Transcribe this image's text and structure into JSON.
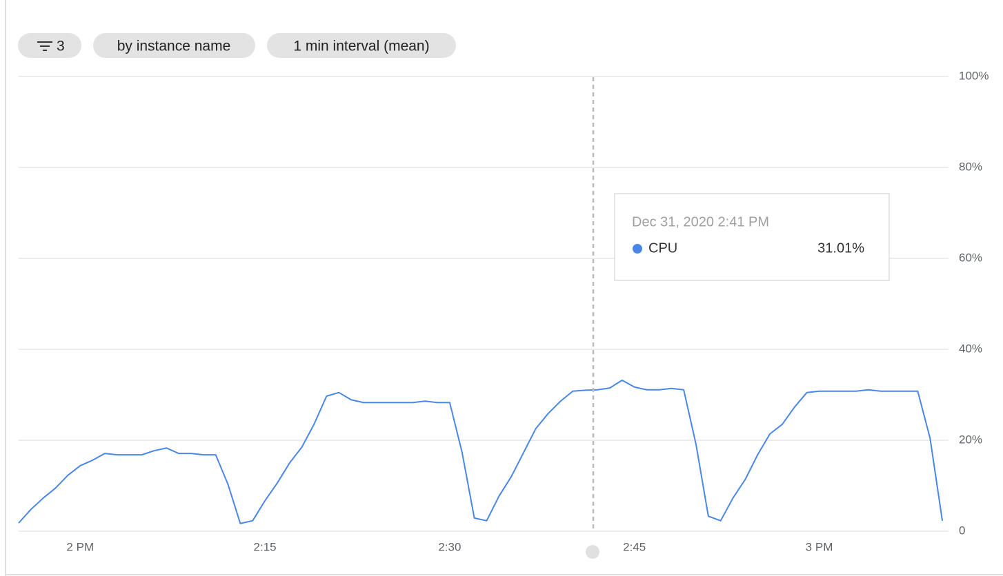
{
  "chips": [
    {
      "label": "3"
    },
    {
      "label": "by instance name"
    },
    {
      "label": "1 min interval (mean)"
    }
  ],
  "tooltip": {
    "title": "Dec 31, 2020 2:41 PM",
    "value_label": "31.01%"
  },
  "chart_data": {
    "type": "line",
    "x": [
      835,
      836,
      837,
      838,
      839,
      840,
      841,
      842,
      843,
      844,
      845,
      846,
      847,
      848,
      849,
      850,
      851,
      852,
      853,
      854,
      855,
      856,
      857,
      858,
      859,
      860,
      861,
      862,
      863,
      864,
      865,
      866,
      867,
      868,
      869,
      870,
      871,
      872,
      873,
      874,
      875,
      876,
      877,
      878,
      879,
      880,
      881,
      882,
      883,
      884,
      885,
      886,
      887,
      888,
      889,
      890,
      891,
      892,
      893,
      894,
      895,
      896,
      897,
      898,
      899,
      900,
      901,
      902,
      903,
      904,
      905,
      906,
      907,
      908,
      909,
      910
    ],
    "series": [
      {
        "name": "CPU",
        "color": "#4a86e8",
        "values": [
          1.8,
          4.8,
          7.3,
          9.5,
          12.3,
          14.4,
          15.6,
          17.1,
          16.8,
          16.8,
          16.8,
          17.7,
          18.3,
          17.1,
          17.1,
          16.8,
          16.8,
          10.3,
          1.7,
          2.3,
          6.7,
          10.6,
          15.0,
          18.5,
          23.6,
          29.7,
          30.5,
          28.9,
          28.3,
          28.3,
          28.3,
          28.3,
          28.3,
          28.6,
          28.3,
          28.3,
          17.4,
          2.9,
          2.3,
          7.7,
          12.0,
          17.3,
          22.6,
          25.9,
          28.6,
          30.8,
          31.01,
          31.1,
          31.5,
          33.2,
          31.7,
          31.1,
          31.1,
          31.4,
          31.1,
          19.1,
          3.3,
          2.3,
          7.3,
          11.4,
          16.8,
          21.4,
          23.5,
          27.3,
          30.5,
          30.8,
          30.8,
          30.8,
          30.8,
          31.1,
          30.8,
          30.8,
          30.8,
          30.8,
          20.5,
          2.3
        ]
      }
    ],
    "xlim": [
      835,
      910.5
    ],
    "xticks": [
      {
        "value": 840,
        "label": "2 PM"
      },
      {
        "value": 855,
        "label": "2:15"
      },
      {
        "value": 870,
        "label": "2:30"
      },
      {
        "value": 885,
        "label": "2:45"
      },
      {
        "value": 900,
        "label": "3 PM"
      }
    ],
    "ylim": [
      0,
      100
    ],
    "yticks": [
      0,
      {
        "value": 20,
        "label": "20%"
      },
      {
        "value": 40,
        "label": "40%"
      },
      {
        "value": 60,
        "label": "60%"
      },
      {
        "value": 80,
        "label": "80%"
      },
      {
        "value": 100,
        "label": "100%"
      }
    ],
    "grid": true
  }
}
